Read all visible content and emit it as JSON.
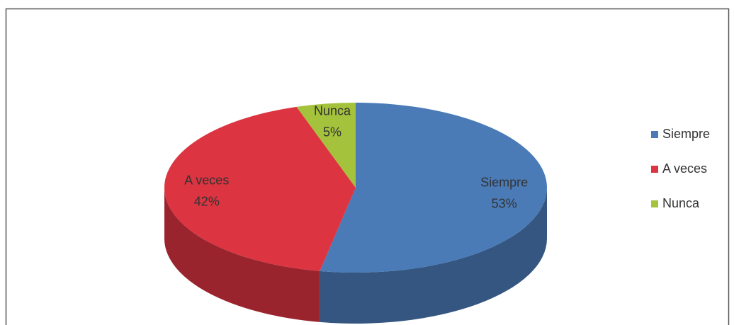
{
  "chart_data": {
    "type": "pie",
    "categories": [
      "Siempre",
      "A veces",
      "Nunca"
    ],
    "values": [
      53,
      42,
      5
    ],
    "value_labels": [
      "53%",
      "42%",
      "5%"
    ],
    "colors": [
      "#4a7bb7",
      "#dc3440",
      "#a4c23c"
    ],
    "legend": "right"
  }
}
